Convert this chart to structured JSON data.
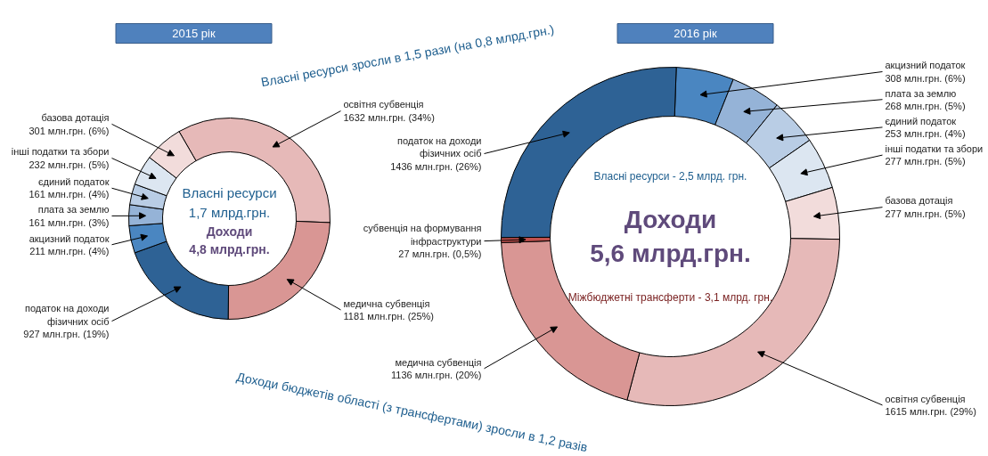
{
  "chart_data": [
    {
      "type": "donut",
      "title": "2015 рік",
      "categories": [
        "освітня субвенція",
        "медична субвенція",
        "податок на доходи фізичних осіб",
        "акцизний податок",
        "плата за землю",
        "єдиний податок",
        "інші податки та збори",
        "базова дотація"
      ],
      "values": [
        1632,
        1181,
        927,
        211,
        161,
        161,
        232,
        301
      ],
      "colors": [
        "#e6b9b8",
        "#d99694",
        "#2e6295",
        "#4a86c1",
        "#95b3d7",
        "#b9cde5",
        "#dce6f1",
        "#f2dcdb"
      ],
      "value_labels": [
        "1632 млн.грн. (34%)",
        "1181 млн.грн. (25%)",
        "927 млн.грн. (19%)",
        "211 млн.грн. (4%)",
        "161 млн.грн. (3%)",
        "161 млн.грн. (4%)",
        "232 млн.грн. (5%)",
        "301 млн.грн. (6%)"
      ],
      "annotations": [
        "Власні ресурси\n1,7 млрд.грн.",
        "Доходи\n4,8 млрд.грн."
      ]
    },
    {
      "type": "donut",
      "title": "2016 рік",
      "categories": [
        "акцизний податок",
        "плата за землю",
        "єдиний податок",
        "інші податки та збори",
        "базова дотація",
        "освітня субвенція",
        "медична субвенція",
        "субвенція на формування інфраструктури",
        "податок на доходи фізичних осіб"
      ],
      "values": [
        308,
        268,
        253,
        277,
        277,
        1615,
        1136,
        27,
        1436
      ],
      "colors": [
        "#4a86c1",
        "#95b3d7",
        "#b9cde5",
        "#dce6f1",
        "#f2dcdb",
        "#e6b9b8",
        "#d99694",
        "#c0504d",
        "#2e6295"
      ],
      "value_labels": [
        "308 млн.грн. (6%)",
        "268 млн.грн. (5%)",
        "253 млн.грн. (4%)",
        "277 млн.грн. (5%)",
        "277 млн.грн. (5%)",
        "1615 млн.грн. (29%)",
        "1136 млн.грн. (20%)",
        "27 млн.грн. (0,5%)",
        "1436 млн.грн. (26%)"
      ],
      "annotations": [
        "Доходи\n5,6 млрд.грн.",
        "Власні ресурси - 2,5 млрд. грн.",
        "Міжбюджетні трансферти - 3,1 млрд. грн.",
        "Власні ресурси зросли в 1,5 рази (на 0,8 млрд.грн.)",
        "Доходи бюджетів області (з трансфертами) зросли в 1,2 разів"
      ]
    }
  ]
}
